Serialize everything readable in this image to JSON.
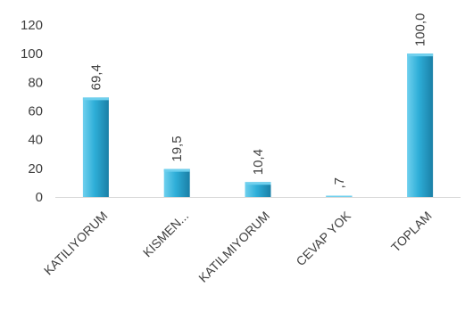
{
  "chart_data": {
    "type": "bar",
    "categories": [
      "KATILIYORUM",
      "KISMEN...",
      "KATILMIYORUM",
      "CEVAP YOK",
      "TOPLAM"
    ],
    "values": [
      69.4,
      19.5,
      10.4,
      0.7,
      100.0
    ],
    "data_labels": [
      "69,4",
      "19,5",
      "10,4",
      ",7",
      "100,0"
    ],
    "title": "",
    "xlabel": "",
    "ylabel": "",
    "ylim": [
      0,
      120
    ],
    "yticks": [
      0,
      20,
      40,
      60,
      80,
      100,
      120
    ],
    "grid": false,
    "legend": "none",
    "colors": {
      "bar_light": "#6fd0ee",
      "bar_mid": "#2eaed8",
      "bar_dark": "#1a7fa6",
      "text": "#404040",
      "axis": "#d9d9d9"
    }
  }
}
